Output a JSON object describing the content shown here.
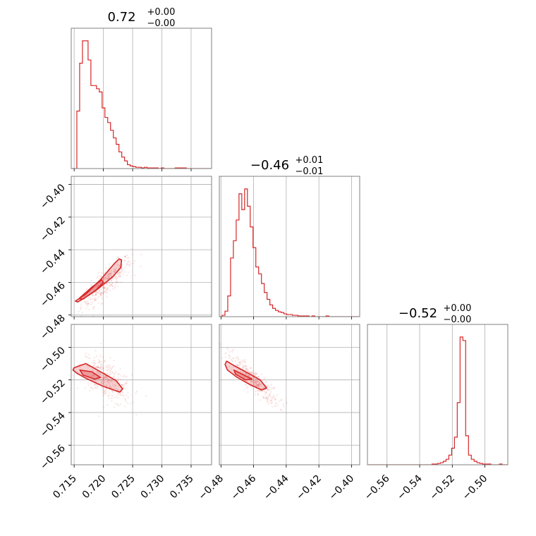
{
  "chart_data": {
    "type": "scatter",
    "layout": "corner-plot",
    "color": "#d62728",
    "grid": true,
    "parameters": [
      {
        "range": [
          0.7145,
          0.7385
        ],
        "ticks": [
          0.715,
          0.72,
          0.725,
          0.73,
          0.735
        ],
        "tick_labels": [
          "0.715",
          "0.720",
          "0.725",
          "0.730",
          "0.735"
        ],
        "title": {
          "median": "0.72",
          "plus": "+0.00",
          "minus": "−0.00"
        }
      },
      {
        "range": [
          -0.481,
          -0.395
        ],
        "ticks": [
          -0.48,
          -0.46,
          -0.44,
          -0.42,
          -0.4
        ],
        "tick_labels": [
          "−0.48",
          "−0.46",
          "−0.44",
          "−0.42",
          "−0.40"
        ],
        "title": {
          "median": "−0.46",
          "plus": "+0.01",
          "minus": "−0.01"
        }
      },
      {
        "range": [
          -0.572,
          -0.486
        ],
        "ticks": [
          -0.56,
          -0.54,
          -0.52,
          -0.5
        ],
        "tick_labels": [
          "−0.56",
          "−0.54",
          "−0.52",
          "−0.50"
        ],
        "title": {
          "median": "−0.52",
          "plus": "+0.00",
          "minus": "−0.00"
        }
      }
    ],
    "histograms": [
      {
        "edges": [
          0.7145,
          0.7385
        ],
        "bins": 50,
        "counts": [
          0,
          0,
          90,
          165,
          200,
          200,
          170,
          130,
          130,
          125,
          120,
          95,
          80,
          72,
          60,
          48,
          38,
          26,
          18,
          12,
          6,
          4,
          3,
          2,
          2,
          1,
          2,
          1,
          1,
          1,
          1,
          0,
          1,
          0,
          0,
          0,
          0,
          1,
          1,
          1,
          1,
          0,
          0,
          0,
          0,
          0,
          0,
          0,
          0,
          0
        ]
      },
      {
        "edges": [
          -0.481,
          -0.395
        ],
        "bins": 50,
        "counts": [
          0,
          2,
          8,
          30,
          85,
          110,
          140,
          178,
          155,
          185,
          160,
          130,
          100,
          72,
          62,
          48,
          35,
          25,
          17,
          12,
          9,
          7,
          6,
          4,
          3,
          3,
          2,
          2,
          1,
          1,
          1,
          1,
          0,
          1,
          0,
          0,
          0,
          0,
          1,
          0,
          0,
          0,
          0,
          0,
          0,
          0,
          0,
          0,
          0,
          0
        ]
      },
      {
        "edges": [
          -0.572,
          -0.486
        ],
        "bins": 50,
        "counts": [
          0,
          0,
          0,
          0,
          0,
          0,
          0,
          0,
          0,
          0,
          0,
          0,
          0,
          0,
          0,
          0,
          0,
          0,
          0,
          0,
          0,
          0,
          0,
          1,
          1,
          2,
          3,
          5,
          8,
          14,
          24,
          40,
          90,
          185,
          180,
          42,
          14,
          8,
          5,
          3,
          2,
          1,
          1,
          1,
          0,
          0,
          0,
          1,
          0,
          0
        ]
      }
    ],
    "contours": {
      "1-0": [
        [
          [
            0.7152,
            -0.4715
          ],
          [
            0.717,
            -0.4672
          ],
          [
            0.7196,
            -0.458
          ],
          [
            0.7218,
            -0.4488
          ],
          [
            0.7227,
            -0.4456
          ],
          [
            0.7231,
            -0.4462
          ],
          [
            0.723,
            -0.4508
          ],
          [
            0.7217,
            -0.4562
          ],
          [
            0.719,
            -0.4642
          ],
          [
            0.7168,
            -0.4695
          ],
          [
            0.7156,
            -0.472
          ]
        ],
        [
          [
            0.7158,
            -0.47
          ],
          [
            0.718,
            -0.463
          ],
          [
            0.7197,
            -0.4585
          ],
          [
            0.72,
            -0.46
          ],
          [
            0.7186,
            -0.4652
          ],
          [
            0.7165,
            -0.4702
          ]
        ]
      ],
      "2-0": [
        [
          [
            0.715,
            -0.5125
          ],
          [
            0.717,
            -0.51
          ],
          [
            0.7195,
            -0.515
          ],
          [
            0.7222,
            -0.5205
          ],
          [
            0.7233,
            -0.5255
          ],
          [
            0.7228,
            -0.5275
          ],
          [
            0.72,
            -0.524
          ],
          [
            0.717,
            -0.519
          ],
          [
            0.7155,
            -0.516
          ],
          [
            0.7148,
            -0.514
          ]
        ],
        [
          [
            0.716,
            -0.514
          ],
          [
            0.718,
            -0.515
          ],
          [
            0.7195,
            -0.5185
          ],
          [
            0.7185,
            -0.5195
          ],
          [
            0.7165,
            -0.517
          ]
        ]
      ],
      "2-1": [
        [
          [
            -0.4765,
            -0.5085
          ],
          [
            -0.4715,
            -0.5115
          ],
          [
            -0.463,
            -0.516
          ],
          [
            -0.456,
            -0.52
          ],
          [
            -0.452,
            -0.525
          ],
          [
            -0.455,
            -0.5262
          ],
          [
            -0.462,
            -0.523
          ],
          [
            -0.47,
            -0.5185
          ],
          [
            -0.476,
            -0.514
          ],
          [
            -0.4775,
            -0.5105
          ]
        ],
        [
          [
            -0.472,
            -0.514
          ],
          [
            -0.466,
            -0.517
          ],
          [
            -0.461,
            -0.5195
          ],
          [
            -0.465,
            -0.52
          ],
          [
            -0.471,
            -0.5165
          ]
        ]
      ]
    },
    "scatter_samples": [
      {
        "n": 350,
        "center": [
          0.7205,
          -0.46,
          -0.52
        ]
      }
    ]
  }
}
